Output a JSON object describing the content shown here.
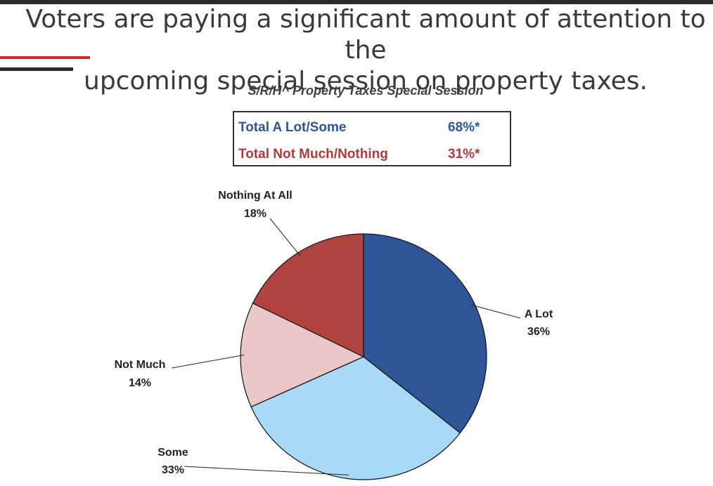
{
  "title_lines": [
    "Voters are paying a significant amount of attention to the",
    "upcoming special session on property taxes."
  ],
  "colors": {
    "accent_red": "#d32b2b",
    "accent_dark": "#2b2b2b",
    "positive": "#2e5596",
    "negative": "#b03a3a"
  },
  "summary": {
    "rows": [
      {
        "label": "Total A Lot/Some",
        "value": "68%*"
      },
      {
        "label": "Total Not Much/Nothing",
        "value": "31%*"
      }
    ]
  },
  "chart_data": {
    "type": "pie",
    "title": "S/R/H^ Property Taxes Special Session",
    "slices": [
      {
        "label": "A Lot",
        "value": 36,
        "value_label": "36%",
        "color": "#2e5596"
      },
      {
        "label": "Some",
        "value": 33,
        "value_label": "33%",
        "color": "#a8daf7"
      },
      {
        "label": "Not Much",
        "value": 14,
        "value_label": "14%",
        "color": "#ebc7c7"
      },
      {
        "label": "Nothing At All",
        "value": 18,
        "value_label": "18%",
        "color": "#b04340"
      }
    ]
  }
}
